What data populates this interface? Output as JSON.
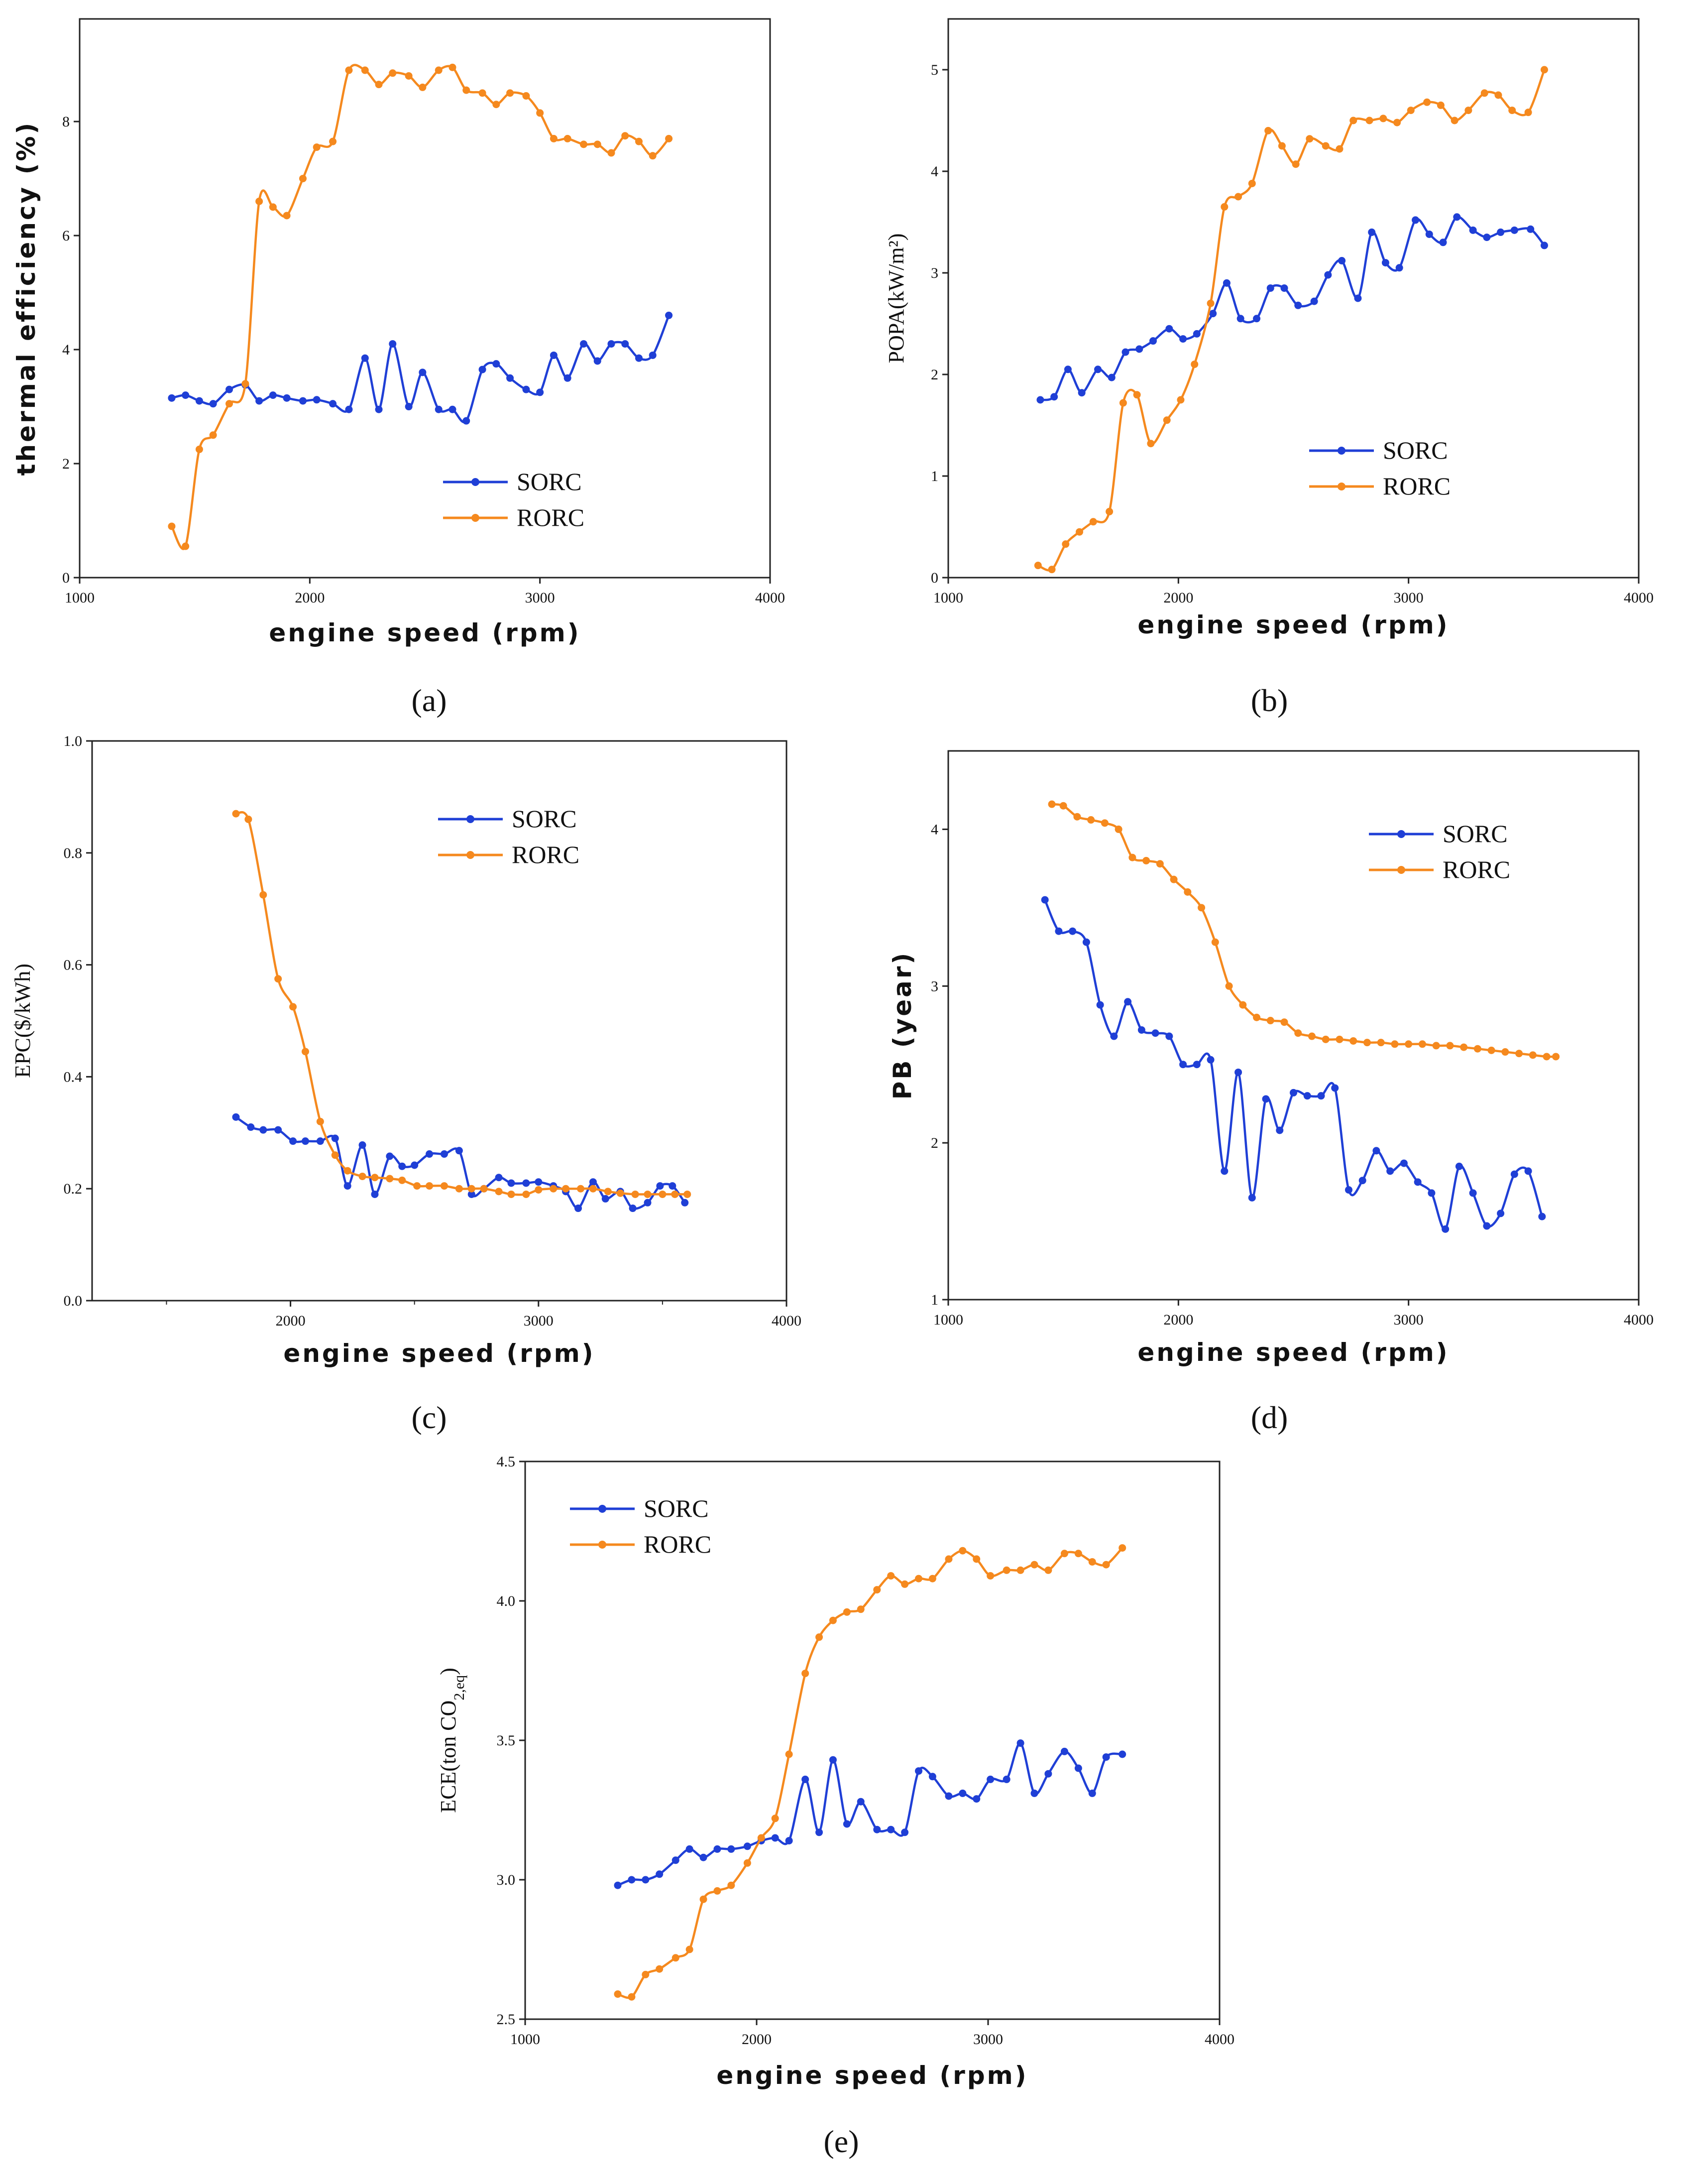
{
  "colors": {
    "SORC": "#1f3fd6",
    "RORC": "#f5891e"
  },
  "panel_labels": [
    "(a)",
    "(b)",
    "(c)",
    "(d)",
    "(e)"
  ],
  "chart_data": [
    {
      "id": "a",
      "type": "line",
      "title": "",
      "xlabel": "engine speed (rpm)",
      "ylabel": "thermal efficiency (%)",
      "xlim": [
        1000,
        4000
      ],
      "ylim": [
        0,
        9.8
      ],
      "xticks": [
        "1000",
        "2000",
        "3000",
        "4000"
      ],
      "yticks": [
        "0",
        "2",
        "4",
        "6",
        "8"
      ],
      "xtick_values": [
        1000,
        2000,
        3000,
        4000
      ],
      "ytick_values": [
        0,
        2,
        4,
        6,
        8
      ],
      "series": [
        {
          "name": "SORC",
          "x": [
            1400,
            1460,
            1520,
            1580,
            1650,
            1720,
            1780,
            1840,
            1900,
            1970,
            2030,
            2100,
            2170,
            2240,
            2300,
            2360,
            2430,
            2490,
            2560,
            2620,
            2680,
            2750,
            2810,
            2870,
            2940,
            3000,
            3060,
            3120,
            3190,
            3250,
            3310,
            3370,
            3430,
            3490,
            3560
          ],
          "y": [
            3.15,
            3.2,
            3.1,
            3.05,
            3.3,
            3.38,
            3.1,
            3.2,
            3.15,
            3.1,
            3.12,
            3.05,
            2.95,
            3.85,
            2.95,
            4.1,
            3.0,
            3.6,
            2.95,
            2.95,
            2.75,
            3.65,
            3.75,
            3.5,
            3.3,
            3.25,
            3.9,
            3.5,
            4.1,
            3.8,
            4.1,
            4.1,
            3.85,
            3.9,
            4.6
          ]
        },
        {
          "name": "RORC",
          "x": [
            1400,
            1460,
            1520,
            1580,
            1650,
            1720,
            1780,
            1840,
            1900,
            1970,
            2030,
            2100,
            2170,
            2240,
            2300,
            2360,
            2430,
            2490,
            2560,
            2620,
            2680,
            2750,
            2810,
            2870,
            2940,
            3000,
            3060,
            3120,
            3190,
            3250,
            3310,
            3370,
            3430,
            3490,
            3560
          ],
          "y": [
            0.9,
            0.55,
            2.25,
            2.5,
            3.05,
            3.4,
            6.6,
            6.5,
            6.35,
            7.0,
            7.55,
            7.65,
            8.9,
            8.9,
            8.65,
            8.85,
            8.8,
            8.6,
            8.9,
            8.95,
            8.55,
            8.5,
            8.3,
            8.5,
            8.45,
            8.15,
            7.7,
            7.7,
            7.6,
            7.6,
            7.45,
            7.75,
            7.65,
            7.4,
            7.7
          ]
        }
      ]
    },
    {
      "id": "b",
      "type": "line",
      "title": "",
      "xlabel": "engine speed (rpm)",
      "ylabel": "POPA(kW/m²)",
      "xlim": [
        1000,
        4000
      ],
      "ylim": [
        0,
        5.5
      ],
      "xticks": [
        "1000",
        "2000",
        "3000",
        "4000"
      ],
      "yticks": [
        "0",
        "1",
        "2",
        "3",
        "4",
        "5"
      ],
      "xtick_values": [
        1000,
        2000,
        3000,
        4000
      ],
      "ytick_values": [
        0,
        1,
        2,
        3,
        4,
        5
      ],
      "series": [
        {
          "name": "SORC",
          "x": [
            1400,
            1460,
            1520,
            1580,
            1650,
            1710,
            1770,
            1830,
            1890,
            1960,
            2020,
            2080,
            2150,
            2210,
            2270,
            2340,
            2400,
            2460,
            2520,
            2590,
            2650,
            2710,
            2780,
            2840,
            2900,
            2960,
            3030,
            3090,
            3150,
            3210,
            3280,
            3340,
            3400,
            3460,
            3530,
            3590
          ],
          "y": [
            1.75,
            1.78,
            2.05,
            1.82,
            2.05,
            1.97,
            2.22,
            2.25,
            2.33,
            2.45,
            2.35,
            2.4,
            2.6,
            2.9,
            2.55,
            2.55,
            2.85,
            2.85,
            2.68,
            2.72,
            2.98,
            3.12,
            2.75,
            3.4,
            3.1,
            3.05,
            3.52,
            3.38,
            3.3,
            3.55,
            3.42,
            3.35,
            3.4,
            3.42,
            3.43,
            3.27
          ]
        },
        {
          "name": "RORC",
          "x": [
            1390,
            1450,
            1510,
            1570,
            1630,
            1700,
            1760,
            1820,
            1880,
            1950,
            2010,
            2070,
            2140,
            2200,
            2260,
            2320,
            2390,
            2450,
            2510,
            2570,
            2640,
            2700,
            2760,
            2830,
            2890,
            2950,
            3010,
            3080,
            3140,
            3200,
            3260,
            3330,
            3390,
            3450,
            3520,
            3590
          ],
          "y": [
            0.12,
            0.08,
            0.33,
            0.45,
            0.55,
            0.65,
            1.72,
            1.8,
            1.32,
            1.55,
            1.75,
            2.1,
            2.7,
            3.65,
            3.75,
            3.88,
            4.4,
            4.25,
            4.07,
            4.32,
            4.25,
            4.22,
            4.5,
            4.5,
            4.52,
            4.48,
            4.6,
            4.68,
            4.65,
            4.5,
            4.6,
            4.77,
            4.75,
            4.6,
            4.58,
            5.0
          ]
        }
      ]
    },
    {
      "id": "c",
      "type": "line",
      "title": "",
      "xlabel": "engine speed (rpm)",
      "ylabel": "EPC($/kWh)",
      "xlim": [
        1200,
        4000
      ],
      "ylim": [
        0,
        1.0
      ],
      "xticks": [
        "2000",
        "3000",
        "4000"
      ],
      "yticks": [
        "0.0",
        "0.2",
        "0.4",
        "0.6",
        "0.8",
        "1.0"
      ],
      "xtick_values": [
        2000,
        3000,
        4000
      ],
      "ytick_values": [
        0,
        0.2,
        0.4,
        0.6,
        0.8,
        1.0
      ],
      "minor_xticks": [
        1500,
        2500,
        3500
      ],
      "series": [
        {
          "name": "SORC",
          "x": [
            1780,
            1840,
            1890,
            1950,
            2010,
            2060,
            2120,
            2180,
            2230,
            2290,
            2340,
            2400,
            2450,
            2500,
            2560,
            2620,
            2680,
            2730,
            2780,
            2840,
            2890,
            2950,
            3000,
            3060,
            3110,
            3160,
            3220,
            3270,
            3330,
            3380,
            3440,
            3490,
            3540,
            3590
          ],
          "y": [
            0.328,
            0.31,
            0.305,
            0.305,
            0.285,
            0.285,
            0.285,
            0.29,
            0.205,
            0.278,
            0.19,
            0.258,
            0.24,
            0.242,
            0.262,
            0.262,
            0.268,
            0.19,
            0.2,
            0.22,
            0.21,
            0.21,
            0.212,
            0.205,
            0.195,
            0.165,
            0.212,
            0.182,
            0.195,
            0.165,
            0.175,
            0.205,
            0.205,
            0.175
          ]
        },
        {
          "name": "RORC",
          "x": [
            1780,
            1830,
            1890,
            1950,
            2010,
            2060,
            2120,
            2180,
            2230,
            2290,
            2340,
            2400,
            2450,
            2510,
            2560,
            2620,
            2680,
            2730,
            2780,
            2840,
            2890,
            2950,
            3000,
            3060,
            3110,
            3170,
            3220,
            3280,
            3330,
            3390,
            3440,
            3500,
            3550,
            3600
          ],
          "y": [
            0.87,
            0.86,
            0.725,
            0.575,
            0.525,
            0.445,
            0.32,
            0.26,
            0.232,
            0.222,
            0.22,
            0.218,
            0.215,
            0.205,
            0.205,
            0.205,
            0.2,
            0.2,
            0.2,
            0.195,
            0.19,
            0.19,
            0.198,
            0.2,
            0.2,
            0.2,
            0.2,
            0.195,
            0.192,
            0.19,
            0.19,
            0.19,
            0.19,
            0.19
          ]
        }
      ]
    },
    {
      "id": "d",
      "type": "line",
      "title": "",
      "xlabel": "engine speed (rpm)",
      "ylabel": "PB (year)",
      "xlim": [
        1000,
        4000
      ],
      "ylim": [
        1,
        4.5
      ],
      "xticks": [
        "1000",
        "2000",
        "3000",
        "4000"
      ],
      "yticks": [
        "1",
        "2",
        "3",
        "4"
      ],
      "xtick_values": [
        1000,
        2000,
        3000,
        4000
      ],
      "ytick_values": [
        1,
        2,
        3,
        4
      ],
      "series": [
        {
          "name": "SORC",
          "x": [
            1420,
            1480,
            1540,
            1600,
            1660,
            1720,
            1780,
            1840,
            1900,
            1960,
            2020,
            2080,
            2140,
            2200,
            2260,
            2320,
            2380,
            2440,
            2500,
            2560,
            2620,
            2680,
            2740,
            2800,
            2860,
            2920,
            2980,
            3040,
            3100,
            3160,
            3220,
            3280,
            3340,
            3400,
            3460,
            3520,
            3580
          ],
          "y": [
            3.55,
            3.35,
            3.35,
            3.28,
            2.88,
            2.68,
            2.9,
            2.72,
            2.7,
            2.68,
            2.5,
            2.5,
            2.53,
            1.82,
            2.45,
            1.65,
            2.28,
            2.08,
            2.32,
            2.3,
            2.3,
            2.35,
            1.7,
            1.76,
            1.95,
            1.82,
            1.87,
            1.75,
            1.68,
            1.45,
            1.85,
            1.68,
            1.47,
            1.55,
            1.8,
            1.82,
            1.53
          ]
        },
        {
          "name": "RORC",
          "x": [
            1450,
            1500,
            1560,
            1620,
            1680,
            1740,
            1800,
            1860,
            1920,
            1980,
            2040,
            2100,
            2160,
            2220,
            2280,
            2340,
            2400,
            2460,
            2520,
            2580,
            2640,
            2700,
            2760,
            2820,
            2880,
            2940,
            3000,
            3060,
            3120,
            3180,
            3240,
            3300,
            3360,
            3420,
            3480,
            3540,
            3600,
            3640
          ],
          "y": [
            4.16,
            4.15,
            4.08,
            4.06,
            4.04,
            4.0,
            3.82,
            3.8,
            3.78,
            3.68,
            3.6,
            3.5,
            3.28,
            3.0,
            2.88,
            2.8,
            2.78,
            2.77,
            2.7,
            2.68,
            2.66,
            2.66,
            2.65,
            2.64,
            2.64,
            2.63,
            2.63,
            2.63,
            2.62,
            2.62,
            2.61,
            2.6,
            2.59,
            2.58,
            2.57,
            2.56,
            2.55,
            2.55
          ]
        }
      ]
    },
    {
      "id": "e",
      "type": "line",
      "title": "",
      "xlabel": "engine speed (rpm)",
      "ylabel": "ECE(ton CO",
      "ylabel_subscript": "2,eq",
      "ylabel_close": ")",
      "xlim": [
        1000,
        4000
      ],
      "ylim": [
        2.5,
        4.5
      ],
      "xticks": [
        "1000",
        "2000",
        "3000",
        "4000"
      ],
      "yticks": [
        "2.5",
        "3.0",
        "3.5",
        "4.0",
        "4.5"
      ],
      "xtick_values": [
        1000,
        2000,
        3000,
        4000
      ],
      "ytick_values": [
        2.5,
        3.0,
        3.5,
        4.0,
        4.5
      ],
      "series": [
        {
          "name": "SORC",
          "x": [
            1400,
            1460,
            1520,
            1580,
            1650,
            1710,
            1770,
            1830,
            1890,
            1960,
            2020,
            2080,
            2140,
            2210,
            2270,
            2330,
            2390,
            2450,
            2520,
            2580,
            2640,
            2700,
            2760,
            2830,
            2890,
            2950,
            3010,
            3080,
            3140,
            3200,
            3260,
            3330,
            3390,
            3450,
            3510,
            3580
          ],
          "y": [
            2.98,
            3.0,
            3.0,
            3.02,
            3.07,
            3.11,
            3.08,
            3.11,
            3.11,
            3.12,
            3.14,
            3.15,
            3.14,
            3.36,
            3.17,
            3.43,
            3.2,
            3.28,
            3.18,
            3.18,
            3.17,
            3.39,
            3.37,
            3.3,
            3.31,
            3.29,
            3.36,
            3.36,
            3.49,
            3.31,
            3.38,
            3.46,
            3.4,
            3.31,
            3.44,
            3.45
          ]
        },
        {
          "name": "RORC",
          "x": [
            1400,
            1460,
            1520,
            1580,
            1650,
            1710,
            1770,
            1830,
            1890,
            1960,
            2020,
            2080,
            2140,
            2210,
            2270,
            2330,
            2390,
            2450,
            2520,
            2580,
            2640,
            2700,
            2760,
            2830,
            2890,
            2950,
            3010,
            3080,
            3140,
            3200,
            3260,
            3330,
            3390,
            3450,
            3510,
            3580
          ],
          "y": [
            2.59,
            2.58,
            2.66,
            2.68,
            2.72,
            2.75,
            2.93,
            2.96,
            2.98,
            3.06,
            3.15,
            3.22,
            3.45,
            3.74,
            3.87,
            3.93,
            3.96,
            3.97,
            4.04,
            4.09,
            4.06,
            4.08,
            4.08,
            4.15,
            4.18,
            4.15,
            4.09,
            4.11,
            4.11,
            4.13,
            4.11,
            4.17,
            4.17,
            4.14,
            4.13,
            4.19
          ]
        }
      ]
    }
  ]
}
